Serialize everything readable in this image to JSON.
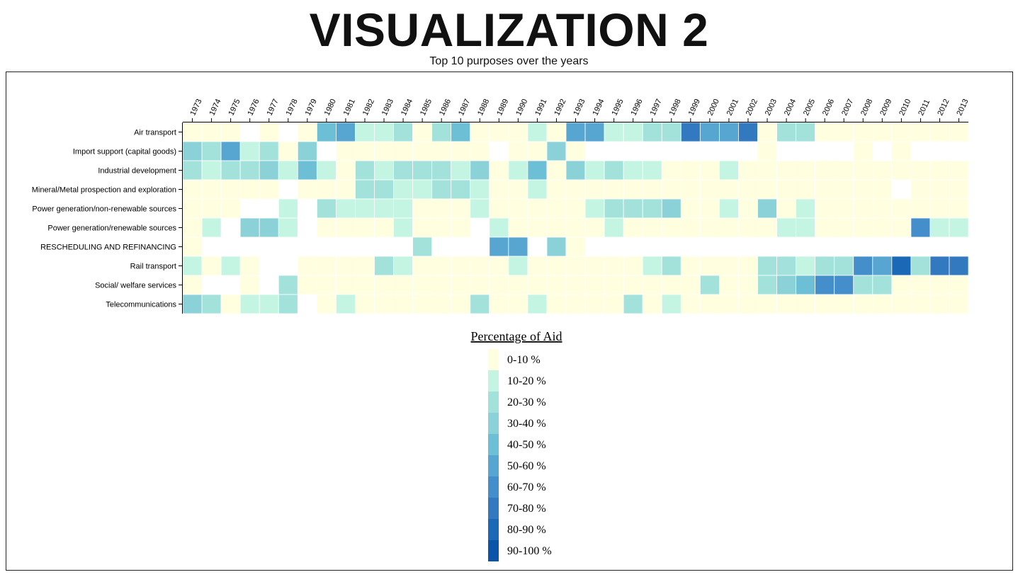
{
  "header": {
    "title": "VISUALIZATION 2",
    "subtitle": "Top 10 purposes over the years"
  },
  "chart_data": {
    "type": "heatmap",
    "title": "VISUALIZATION 2",
    "subtitle": "Top 10 purposes over the years",
    "x": [
      "1973",
      "1974",
      "1975",
      "1976",
      "1977",
      "1978",
      "1979",
      "1980",
      "1981",
      "1982",
      "1983",
      "1984",
      "1985",
      "1986",
      "1987",
      "1988",
      "1989",
      "1990",
      "1991",
      "1992",
      "1993",
      "1994",
      "1995",
      "1996",
      "1997",
      "1998",
      "1999",
      "2000",
      "2001",
      "2002",
      "2003",
      "2004",
      "2005",
      "2006",
      "2007",
      "2008",
      "2009",
      "2010",
      "2011",
      "2012",
      "2013"
    ],
    "y": [
      "Air transport",
      "Import support (capital goods)",
      "Industrial development",
      "Mineral/Metal prospection and exploration",
      "Power generation/non-renewable sources",
      "Power generation/renewable sources",
      "RESCHEDULING AND REFINANCING",
      "Rail transport",
      "Social/ welfare services",
      "Telecommunications"
    ],
    "value_note": "bin index 0-9 (0 = 0-10 %, 9 = 90-100 %); null = no data",
    "bins": [
      [
        0,
        0,
        0,
        null,
        0,
        null,
        0,
        4,
        5,
        1,
        1,
        2,
        0,
        2,
        4,
        0,
        0,
        0,
        1,
        0,
        5,
        5,
        1,
        1,
        2,
        2,
        7,
        5,
        5,
        7,
        0,
        2,
        2,
        0,
        0,
        0,
        0,
        0,
        0,
        0,
        0
      ],
      [
        3,
        2,
        5,
        1,
        2,
        0,
        3,
        null,
        0,
        0,
        0,
        0,
        0,
        0,
        0,
        0,
        null,
        0,
        0,
        3,
        0,
        null,
        null,
        null,
        null,
        null,
        null,
        null,
        null,
        null,
        0,
        null,
        null,
        null,
        null,
        0,
        null,
        0,
        null,
        null,
        null
      ],
      [
        2,
        1,
        2,
        2,
        3,
        1,
        4,
        1,
        0,
        2,
        1,
        2,
        2,
        2,
        1,
        3,
        0,
        1,
        4,
        0,
        3,
        1,
        2,
        1,
        1,
        0,
        0,
        0,
        1,
        0,
        0,
        0,
        0,
        0,
        0,
        0,
        0,
        0,
        0,
        0,
        0
      ],
      [
        0,
        0,
        0,
        0,
        0,
        null,
        0,
        0,
        0,
        2,
        2,
        1,
        1,
        2,
        2,
        1,
        0,
        0,
        1,
        0,
        0,
        0,
        0,
        0,
        0,
        0,
        0,
        0,
        0,
        0,
        0,
        0,
        0,
        0,
        0,
        0,
        0,
        null,
        0,
        0,
        0
      ],
      [
        0,
        0,
        0,
        null,
        null,
        1,
        null,
        2,
        1,
        1,
        1,
        1,
        0,
        0,
        0,
        1,
        0,
        0,
        0,
        0,
        0,
        1,
        2,
        2,
        2,
        3,
        0,
        0,
        1,
        0,
        3,
        0,
        1,
        0,
        0,
        0,
        0,
        0,
        0,
        0,
        0
      ],
      [
        0,
        1,
        null,
        3,
        3,
        1,
        null,
        0,
        0,
        0,
        0,
        1,
        0,
        0,
        0,
        null,
        1,
        0,
        0,
        0,
        0,
        0,
        1,
        0,
        0,
        0,
        0,
        0,
        0,
        0,
        0,
        1,
        1,
        0,
        0,
        0,
        0,
        0,
        6,
        1,
        1
      ],
      [
        0,
        null,
        null,
        null,
        null,
        null,
        null,
        null,
        null,
        null,
        null,
        null,
        2,
        null,
        null,
        null,
        5,
        5,
        null,
        3,
        0,
        null,
        null,
        null,
        null,
        null,
        null,
        null,
        null,
        null,
        null,
        null,
        null,
        null,
        null,
        null,
        null,
        null,
        null,
        null,
        null
      ],
      [
        1,
        0,
        1,
        0,
        null,
        null,
        0,
        0,
        0,
        0,
        2,
        1,
        0,
        0,
        0,
        0,
        0,
        1,
        0,
        0,
        0,
        0,
        0,
        0,
        1,
        2,
        0,
        0,
        0,
        0,
        2,
        2,
        1,
        2,
        2,
        6,
        5,
        8,
        2,
        7,
        7
      ],
      [
        0,
        null,
        null,
        0,
        null,
        2,
        0,
        0,
        0,
        0,
        0,
        0,
        0,
        0,
        0,
        0,
        0,
        0,
        0,
        0,
        0,
        0,
        0,
        0,
        0,
        0,
        0,
        2,
        0,
        0,
        2,
        3,
        4,
        6,
        6,
        2,
        2,
        0,
        0,
        0,
        0
      ],
      [
        3,
        2,
        0,
        1,
        1,
        2,
        null,
        0,
        1,
        0,
        0,
        0,
        0,
        0,
        0,
        2,
        0,
        0,
        1,
        0,
        0,
        0,
        0,
        2,
        0,
        1,
        0,
        0,
        0,
        0,
        0,
        0,
        0,
        0,
        0,
        0,
        0,
        0,
        0,
        0,
        0
      ]
    ],
    "legend": {
      "title": "Percentage of Aid",
      "items": [
        {
          "label": "0-10 %",
          "color": "#ffffe0"
        },
        {
          "label": "10-20 %",
          "color": "#c4f5e3"
        },
        {
          "label": "20-30 %",
          "color": "#a3e2da"
        },
        {
          "label": "30-40 %",
          "color": "#8bd2d8"
        },
        {
          "label": "40-50 %",
          "color": "#6cbfd5"
        },
        {
          "label": "50-60 %",
          "color": "#57a6d1"
        },
        {
          "label": "60-70 %",
          "color": "#448ecb"
        },
        {
          "label": "70-80 %",
          "color": "#3279bf"
        },
        {
          "label": "80-90 %",
          "color": "#1a68b6"
        },
        {
          "label": "90-100 %",
          "color": "#0b55a8"
        }
      ]
    },
    "grid": false
  }
}
